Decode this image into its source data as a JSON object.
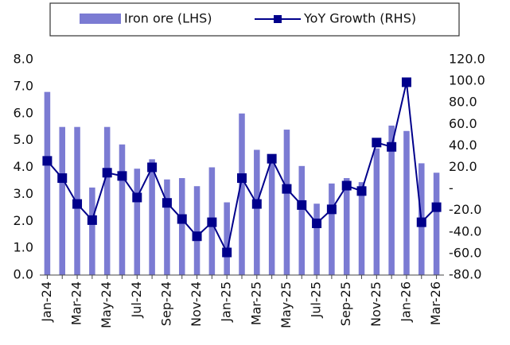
{
  "chart_data": {
    "type": "bar_line",
    "categories": [
      "Jan-24",
      null,
      "Mar-24",
      null,
      "May-24",
      null,
      "Jul-24",
      null,
      "Sep-24",
      null,
      "Nov-24",
      null,
      "Jan-25",
      null,
      "Mar-25",
      null,
      "May-25",
      null,
      "Jul-25",
      null,
      "Sep-25",
      null,
      "Nov-25",
      null,
      "Jan-26",
      null,
      "Mar-26"
    ],
    "series": [
      {
        "name": "Iron ore (LHS)",
        "color": "#7b7bd3",
        "type": "bar",
        "axis": "y",
        "values": [
          6.8,
          5.5,
          5.5,
          3.25,
          5.5,
          4.85,
          3.95,
          4.3,
          3.55,
          3.6,
          3.3,
          4.0,
          2.7,
          6.0,
          4.65,
          4.4,
          5.4,
          4.05,
          2.65,
          3.4,
          3.6,
          3.45,
          4.7,
          5.55,
          5.35,
          4.15,
          3.8
        ]
      },
      {
        "name": "YoY Growth (RHS)",
        "color": "#00008b",
        "type": "line",
        "axis": "y2",
        "values": [
          26,
          10,
          -14,
          -29,
          15,
          12,
          -8,
          20,
          -13,
          -28,
          -44,
          -31,
          -59,
          10,
          -14,
          28,
          0,
          -15,
          -32,
          -19,
          3,
          -2,
          43,
          39,
          99,
          -31,
          -17
        ]
      }
    ],
    "ylim": [
      0,
      8
    ],
    "yticks": [
      {
        "value": 0,
        "label": "0.0"
      },
      {
        "value": 1,
        "label": "1.0"
      },
      {
        "value": 2,
        "label": "2.0"
      },
      {
        "value": 3,
        "label": "3.0"
      },
      {
        "value": 4,
        "label": "4.0"
      },
      {
        "value": 5,
        "label": "5.0"
      },
      {
        "value": 6,
        "label": "6.0"
      },
      {
        "value": 7,
        "label": "7.0"
      },
      {
        "value": 8,
        "label": "8.0"
      }
    ],
    "y2lim": [
      -80,
      120
    ],
    "y2ticks": [
      {
        "value": -80,
        "label": "-80.0"
      },
      {
        "value": -60,
        "label": "-60.0"
      },
      {
        "value": -40,
        "label": "-40.0"
      },
      {
        "value": -20,
        "label": "-20.0"
      },
      {
        "value": 0,
        "label": "-"
      },
      {
        "value": 20,
        "label": "20.0"
      },
      {
        "value": 40,
        "label": "40.0"
      },
      {
        "value": 60,
        "label": "60.0"
      },
      {
        "value": 80,
        "label": "80.0"
      },
      {
        "value": 100,
        "label": "100.0"
      },
      {
        "value": 120,
        "label": "120.0"
      }
    ],
    "legend": "top"
  }
}
